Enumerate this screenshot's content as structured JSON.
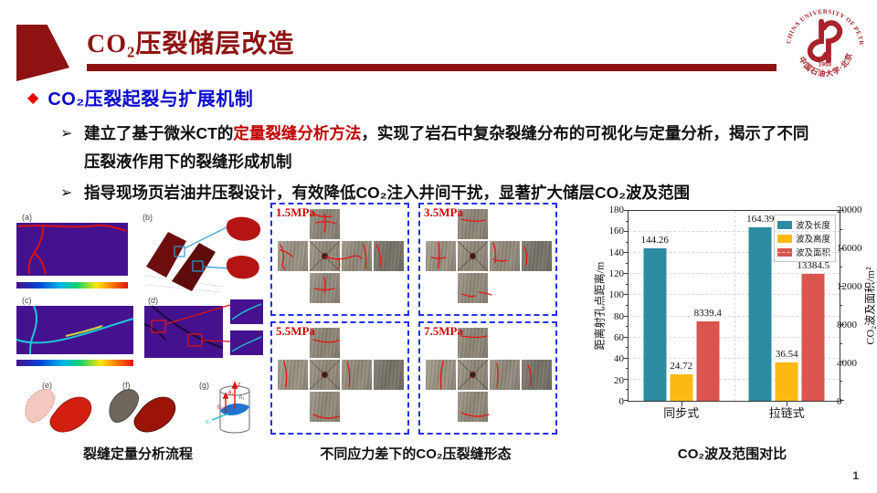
{
  "header": {
    "title": "CO₂压裂储层改造"
  },
  "logo": {
    "top_text": "CHINA UNIVERSITY OF PETROLEUM",
    "bottom_text": "中国石油大学·北京",
    "year": "1953"
  },
  "section": {
    "marker": "◆",
    "heading": "CO₂压裂起裂与扩展机制"
  },
  "bullets": [
    {
      "marker": "➢",
      "pre": "建立了基于微米CT的",
      "highlight": "定量裂缝分析方法",
      "post": "，实现了岩石中复杂裂缝分布的可视化与定量分析，揭示了不同压裂液作用下的裂缝形成机制"
    },
    {
      "marker": "➢",
      "text": "指导现场页岩油井压裂设计，有效降低CO₂注入井间干扰，显著扩大储层CO₂波及范围"
    }
  ],
  "figures": {
    "left": {
      "caption": "裂缝定量分析流程",
      "panel_labels": [
        "(a)",
        "(b)",
        "(c)",
        "(d)",
        "(e)",
        "(f)",
        "(g)"
      ],
      "g_labels": [
        "z",
        "n₁",
        "θ₁",
        "n₂",
        "θ₂"
      ]
    },
    "middle": {
      "caption": "不同应力差下的CO₂压裂缝形态",
      "pressures": [
        "1.5MPa",
        "3.5MPa",
        "5.5MPa",
        "7.5MPa"
      ]
    },
    "right": {
      "caption": "CO₂波及范围对比"
    }
  },
  "chart_data": {
    "type": "bar",
    "title": "",
    "categories": [
      "同步式",
      "拉链式"
    ],
    "series": [
      {
        "name": "波及长度",
        "color": "#2b8ba1",
        "axis": "left",
        "values": [
          144.26,
          164.39
        ]
      },
      {
        "name": "波及高度",
        "color": "#fbb912",
        "axis": "left",
        "values": [
          24.72,
          36.54
        ]
      },
      {
        "name": "波及面积",
        "color": "#d9554d",
        "axis": "right",
        "values": [
          8339.4,
          13384.5
        ]
      }
    ],
    "left_axis": {
      "label": "距离射孔点距离/m",
      "min": 0,
      "max": 180,
      "tick_step": 20,
      "minor_step": 10
    },
    "right_axis": {
      "label": "CO₂波及面积/m²",
      "min": 0,
      "max": 20000,
      "tick_step": 4000,
      "minor_step": 2000
    },
    "legend_position": "top-right",
    "grid": true
  },
  "page_number": "1"
}
